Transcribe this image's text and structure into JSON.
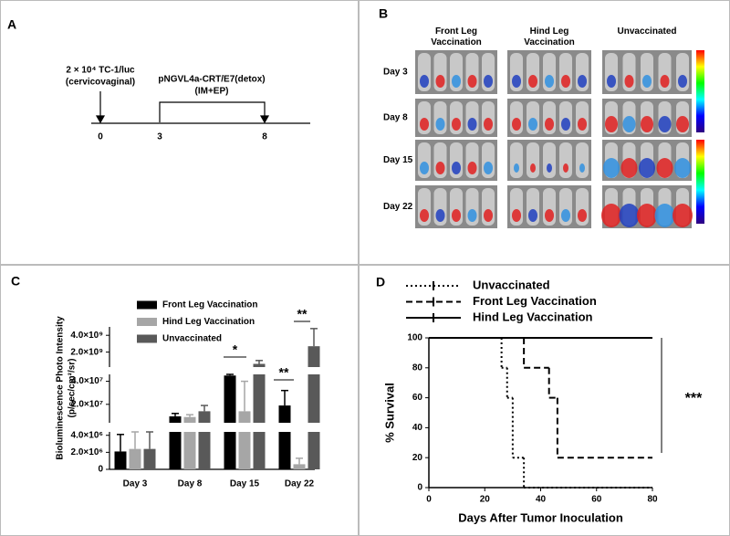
{
  "panel_labels": [
    "A",
    "B",
    "C",
    "D"
  ],
  "panel_a": {
    "injection": "2 × 10⁴ TC-1/luc",
    "injection_site": "(cervicovaginal)",
    "vaccine": "pNGVL4a-CRT/E7(detox)",
    "route": "(IM+EP)",
    "timepoints": [
      "0",
      "3",
      "8"
    ]
  },
  "panel_b": {
    "columns": [
      "Front Leg\nVaccination",
      "Hind Leg\nVaccination",
      "Unvaccinated"
    ],
    "rows": [
      "Day 3",
      "Day 8",
      "Day 15",
      "Day 22"
    ]
  },
  "chart_data": [
    {
      "type": "bar",
      "ylabel": "Bioluminescence Photo Intensity",
      "yunit": "(p/sec/cm²/sr)",
      "categories": [
        "Day 3",
        "Day 8",
        "Day 15",
        "Day 22"
      ],
      "series": [
        {
          "name": "Front Leg Vaccination",
          "color": "#000000",
          "values": [
            2100000,
            9600000,
            45000000,
            19000000
          ],
          "errors": [
            2000000,
            2500000,
            1000000,
            13000000
          ]
        },
        {
          "name": "Hind Leg Vaccination",
          "color": "#a6a6a6",
          "values": [
            2400000,
            9000000,
            14000000,
            600000
          ],
          "errors": [
            2300000,
            2000000,
            26000000,
            700000
          ]
        },
        {
          "name": "Unvaccinated",
          "color": "#595959",
          "values": [
            2400000,
            14000000,
            600000000,
            2700000000
          ],
          "errors": [
            2000000,
            5000000,
            400000000,
            2100000000
          ]
        }
      ],
      "y_segments": [
        {
          "ylim": [
            0,
            4400000
          ],
          "yticks": [
            0,
            {
              "value": 2000000,
              "label": "2.0×10⁶"
            },
            {
              "value": 4000000,
              "label": "4.0×10⁶"
            }
          ]
        },
        {
          "ylim": [
            4000000,
            46000000
          ],
          "yticks": [
            {
              "value": 20000000,
              "label": "2.0×10⁷"
            },
            {
              "value": 40000000,
              "label": "4.0×10⁷"
            }
          ]
        },
        {
          "ylim": [
            220000000,
            5000000000
          ],
          "yticks": [
            {
              "value": 2000000000,
              "label": "2.0×10⁹"
            },
            {
              "value": 4000000000,
              "label": "4.0×10⁹"
            }
          ]
        }
      ],
      "significance": [
        "*",
        "**",
        "**"
      ]
    },
    {
      "type": "line",
      "xlabel": "Days After Tumor Inoculation",
      "ylabel": "% Survival",
      "series": [
        {
          "name": "Unvaccinated",
          "color": "#000000",
          "style": "dotted",
          "x": [
            0,
            26,
            28,
            30,
            34
          ],
          "values": [
            100,
            80,
            60,
            20,
            0
          ]
        },
        {
          "name": "Front Leg Vaccination",
          "color": "#000000",
          "style": "dashed",
          "x": [
            0,
            34,
            43,
            46
          ],
          "values": [
            100,
            80,
            60,
            20
          ]
        },
        {
          "name": "Hind Leg Vaccination",
          "color": "#000000",
          "style": "solid",
          "x": [
            0
          ],
          "values": [
            100
          ]
        }
      ],
      "xlim": [
        0,
        80
      ],
      "xticks": [
        0,
        20,
        40,
        60,
        80
      ],
      "ylim": [
        0,
        100
      ],
      "yticks": [
        0,
        20,
        40,
        60,
        80,
        100
      ],
      "annotation": "***"
    }
  ]
}
